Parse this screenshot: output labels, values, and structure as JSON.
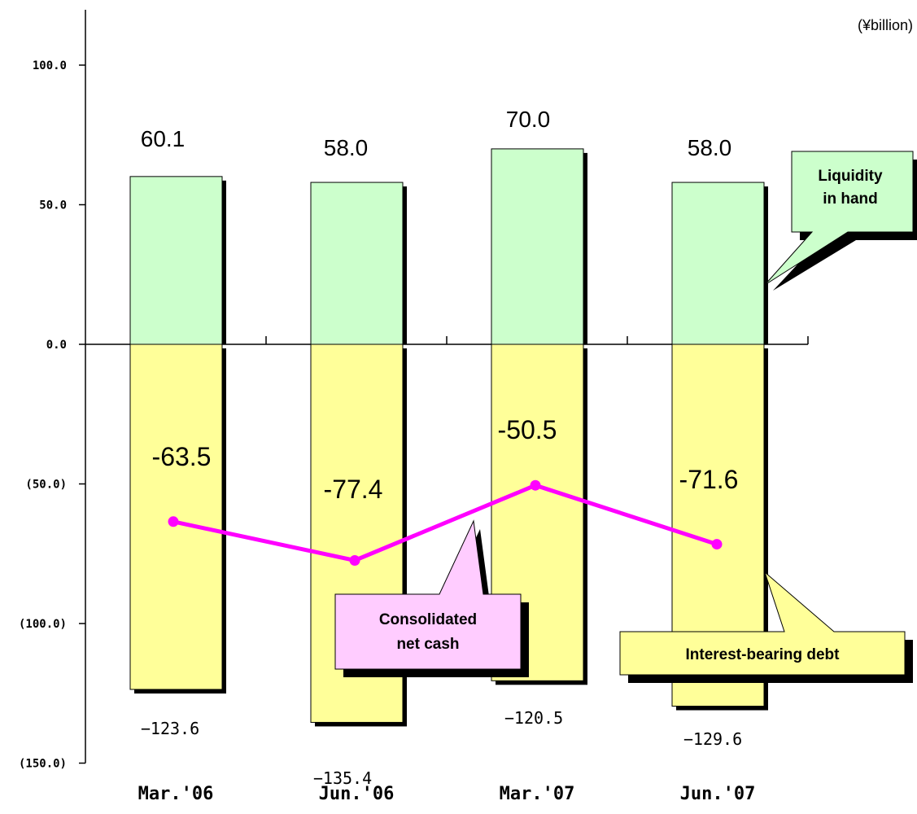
{
  "chart_data": {
    "type": "bar",
    "unit": "(¥billion)",
    "categories": [
      "Mar.'06",
      "Jun.'06",
      "Mar.'07",
      "Jun.'07"
    ],
    "series": [
      {
        "name": "Liquidity in hand",
        "values": [
          60.1,
          58.0,
          70.0,
          58.0
        ],
        "labels": [
          "60.1",
          "58.0",
          "70.0",
          "58.0"
        ],
        "color": "#ccffcc"
      },
      {
        "name": "Interest-bearing debt",
        "values": [
          -123.6,
          -135.4,
          -120.5,
          -129.6
        ],
        "labels": [
          "−123.6",
          "−135.4",
          "−120.5",
          "−129.6"
        ],
        "color": "#ffff99"
      },
      {
        "name": "Consolidated net cash",
        "values": [
          -63.5,
          -77.4,
          -50.5,
          -71.6
        ],
        "labels": [
          "-63.5",
          "-77.4",
          "-50.5",
          "-71.6"
        ],
        "color": "#ff00ff"
      }
    ],
    "yticks": [
      100,
      50,
      0,
      -50,
      -100,
      -150
    ],
    "ytick_labels": [
      "100.0",
      "50.0",
      "0.0",
      "(50.0)",
      "(100.0)",
      "(150.0)"
    ],
    "ylim": [
      -150,
      120
    ],
    "callouts": {
      "liquidity": [
        "Liquidity",
        "in hand"
      ],
      "netcash": [
        "Consolidated",
        "net cash"
      ],
      "debt": [
        "Interest-bearing debt"
      ]
    },
    "colors": {
      "liquidity": "#ccffcc",
      "debt": "#ffff99",
      "netcash": "#ff00ff",
      "netcash_callout": "#ffccff"
    }
  }
}
